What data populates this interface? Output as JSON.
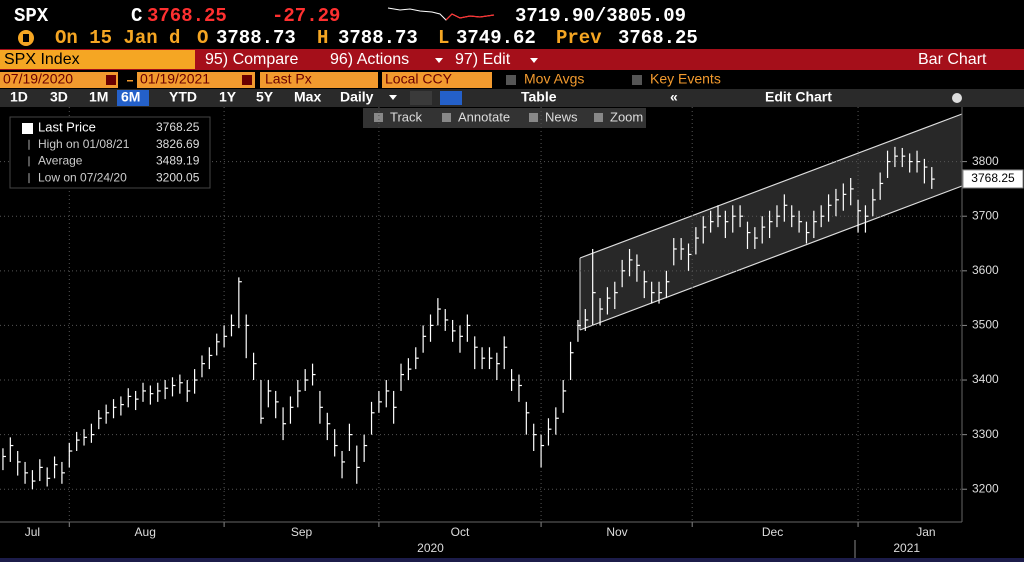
{
  "header": {
    "ticker": "SPX",
    "c_label": "C",
    "last": "3768.25",
    "change": "-27.29",
    "range": "3719.90/3805.09",
    "date": "On 15 Jan d",
    "open_label": "O",
    "open": "3788.73",
    "high_label": "H",
    "high": "3788.73",
    "low_label": "L",
    "low": "3749.62",
    "prev_label": "Prev",
    "prev": "3768.25"
  },
  "menu": {
    "security": "SPX Index",
    "compare": "95) Compare",
    "actions": "96) Actions",
    "edit": "97) Edit",
    "chart_kind": "Bar Chart"
  },
  "settings": {
    "start": "07/19/2020",
    "end": "01/19/2021",
    "field": "Last Px",
    "currency": "Local CCY",
    "mov_avgs": "Mov Avgs",
    "key_events": "Key Events"
  },
  "periods": [
    "1D",
    "3D",
    "1M",
    "6M",
    "YTD",
    "1Y",
    "5Y",
    "Max"
  ],
  "frequency": "Daily",
  "table": "Table",
  "edit_chart": "Edit Chart",
  "tools": [
    "Track",
    "Annotate",
    "News",
    "Zoom"
  ],
  "chart_data": {
    "type": "ohlc",
    "series": [
      {
        "name": "Last Price",
        "color": "#ffffff",
        "high": [
          3275,
          3295,
          3270,
          3250,
          3235,
          3255,
          3240,
          3260,
          3250,
          3285,
          3305,
          3310,
          3320,
          3345,
          3355,
          3365,
          3370,
          3385,
          3380,
          3395,
          3390,
          3395,
          3400,
          3405,
          3410,
          3400,
          3420,
          3445,
          3460,
          3485,
          3500,
          3520,
          3588,
          3520,
          3450,
          3400,
          3400,
          3380,
          3350,
          3370,
          3400,
          3420,
          3430,
          3380,
          3340,
          3310,
          3270,
          3320,
          3280,
          3300,
          3360,
          3380,
          3400,
          3380,
          3430,
          3440,
          3460,
          3500,
          3520,
          3550,
          3530,
          3510,
          3500,
          3520,
          3480,
          3460,
          3460,
          3450,
          3480,
          3420,
          3410,
          3360,
          3320,
          3300,
          3330,
          3350,
          3400,
          3470,
          3510,
          3530,
          3640,
          3550,
          3570,
          3580,
          3620,
          3640,
          3630,
          3600,
          3580,
          3580,
          3600,
          3660,
          3660,
          3650,
          3680,
          3700,
          3710,
          3720,
          3710,
          3720,
          3720,
          3690,
          3680,
          3700,
          3710,
          3720,
          3740,
          3720,
          3710,
          3690,
          3710,
          3720,
          3740,
          3750,
          3760,
          3770,
          3730,
          3720,
          3750,
          3780,
          3820,
          3827,
          3825,
          3815,
          3820,
          3805,
          3790
        ],
        "low": [
          3235,
          3250,
          3225,
          3210,
          3200,
          3215,
          3205,
          3220,
          3210,
          3240,
          3270,
          3280,
          3285,
          3310,
          3320,
          3330,
          3335,
          3350,
          3345,
          3360,
          3355,
          3360,
          3365,
          3370,
          3375,
          3360,
          3375,
          3405,
          3420,
          3445,
          3460,
          3480,
          3495,
          3440,
          3400,
          3320,
          3350,
          3330,
          3290,
          3320,
          3350,
          3380,
          3390,
          3320,
          3290,
          3260,
          3220,
          3270,
          3210,
          3250,
          3300,
          3340,
          3350,
          3320,
          3380,
          3400,
          3420,
          3450,
          3470,
          3500,
          3490,
          3470,
          3450,
          3470,
          3420,
          3420,
          3420,
          3400,
          3420,
          3380,
          3360,
          3300,
          3270,
          3240,
          3280,
          3300,
          3340,
          3400,
          3470,
          3490,
          3500,
          3500,
          3520,
          3530,
          3570,
          3590,
          3580,
          3550,
          3540,
          3540,
          3550,
          3610,
          3620,
          3600,
          3630,
          3650,
          3670,
          3680,
          3660,
          3670,
          3680,
          3640,
          3640,
          3650,
          3660,
          3680,
          3690,
          3680,
          3670,
          3650,
          3660,
          3680,
          3690,
          3700,
          3710,
          3720,
          3670,
          3670,
          3700,
          3730,
          3770,
          3790,
          3790,
          3780,
          3780,
          3760,
          3750
        ],
        "values": [
          3260,
          3280,
          3250,
          3230,
          3215,
          3240,
          3220,
          3245,
          3230,
          3270,
          3290,
          3295,
          3300,
          3330,
          3340,
          3350,
          3355,
          3370,
          3365,
          3380,
          3375,
          3380,
          3385,
          3390,
          3395,
          3380,
          3400,
          3430,
          3445,
          3470,
          3480,
          3500,
          3580,
          3500,
          3430,
          3330,
          3380,
          3360,
          3320,
          3350,
          3380,
          3400,
          3410,
          3350,
          3320,
          3280,
          3250,
          3300,
          3240,
          3280,
          3340,
          3360,
          3380,
          3350,
          3410,
          3420,
          3440,
          3480,
          3500,
          3530,
          3510,
          3490,
          3480,
          3500,
          3460,
          3440,
          3440,
          3430,
          3460,
          3400,
          3390,
          3340,
          3300,
          3280,
          3310,
          3330,
          3380,
          3450,
          3500,
          3510,
          3560,
          3530,
          3550,
          3560,
          3600,
          3620,
          3610,
          3580,
          3560,
          3560,
          3580,
          3640,
          3640,
          3630,
          3660,
          3680,
          3690,
          3700,
          3690,
          3700,
          3700,
          3670,
          3660,
          3680,
          3690,
          3700,
          3720,
          3700,
          3690,
          3670,
          3690,
          3700,
          3720,
          3730,
          3740,
          3750,
          3710,
          3700,
          3730,
          3760,
          3800,
          3810,
          3810,
          3800,
          3800,
          3790,
          3768
        ]
      }
    ],
    "xlim": [
      -0.4,
      130.1
    ],
    "ylim": [
      3140,
      3900
    ],
    "yticks": [
      3200,
      3300,
      3400,
      3500,
      3600,
      3700,
      3800
    ],
    "xticks": [
      9,
      30,
      51,
      73,
      93.5,
      116
    ],
    "month_labels": [
      {
        "value": 4,
        "label": "Jul"
      },
      {
        "value": 19.3,
        "label": "Aug"
      },
      {
        "value": 40.5,
        "label": "Sep"
      },
      {
        "value": 62,
        "label": "Oct"
      },
      {
        "value": 83.3,
        "label": "Nov"
      },
      {
        "value": 104.4,
        "label": "Dec"
      },
      {
        "value": 125.2,
        "label": "Jan"
      }
    ],
    "year_labels": [
      {
        "value": 58,
        "label": "2020"
      },
      {
        "value": 122.6,
        "label": "2021"
      }
    ],
    "grid": true,
    "legend": [
      {
        "label": "Last Price",
        "value": 3768.25
      },
      {
        "label": "High on 01/08/21",
        "value": 3826.69
      },
      {
        "label": "Average",
        "value": 3489.19
      },
      {
        "label": "Low on 07/24/20",
        "value": 3200.05
      }
    ],
    "last_value": 3768.25
  }
}
